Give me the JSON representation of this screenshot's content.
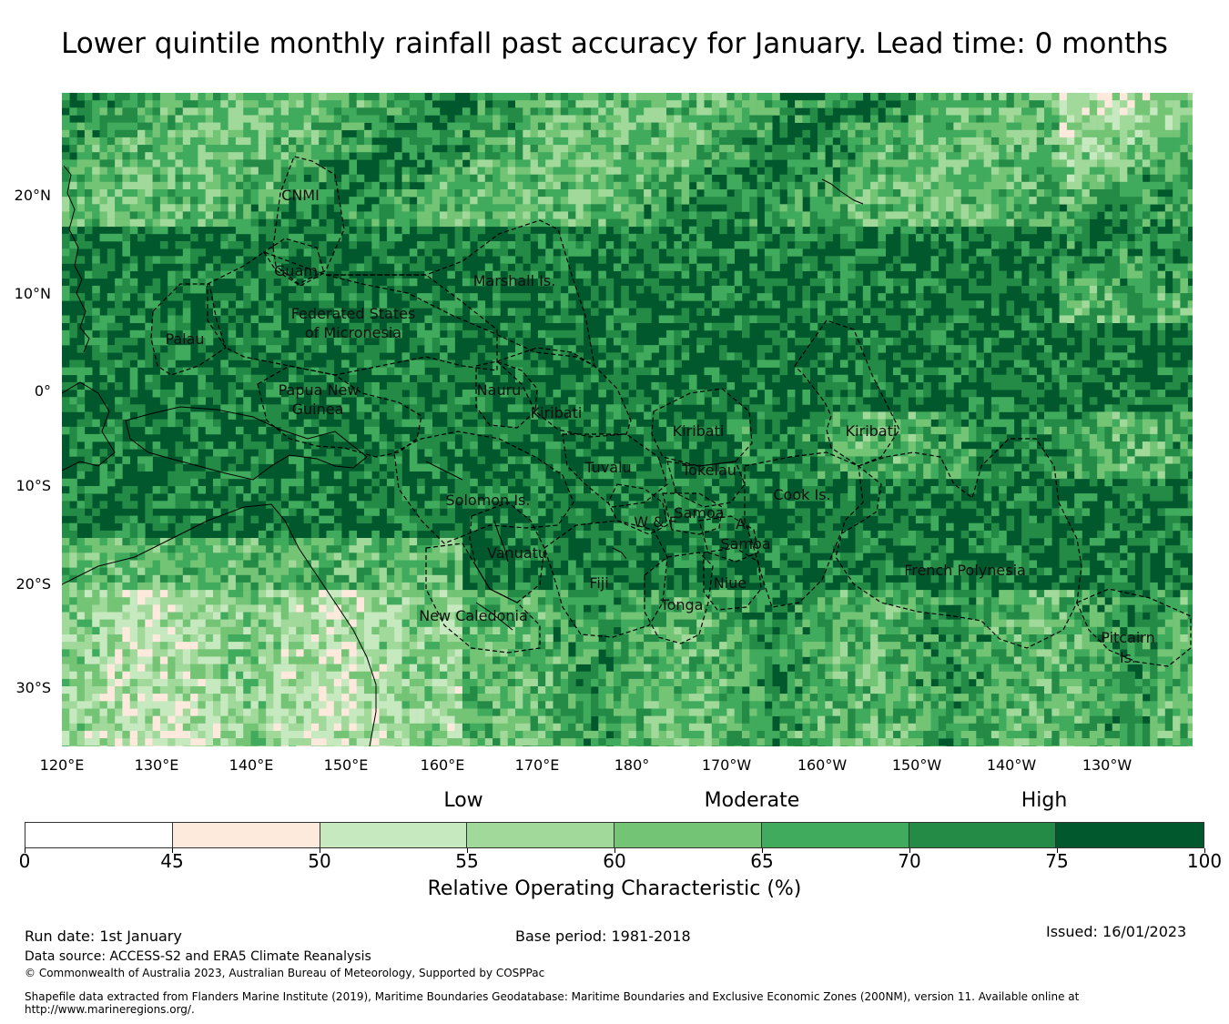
{
  "title": "Lower quintile monthly rainfall past accuracy for January. Lead time: 0 months",
  "map": {
    "lat_labels": [
      "20°N",
      "10°N",
      "0°",
      "10°S",
      "20°S",
      "30°S"
    ],
    "lon_labels": [
      "120°E",
      "130°E",
      "140°E",
      "150°E",
      "160°E",
      "170°E",
      "180°",
      "170°W",
      "160°W",
      "150°W",
      "140°W",
      "130°W"
    ],
    "regions": [
      "CNMI",
      "Guam",
      "Marshall Is.",
      "Federated States",
      "of Micronesia",
      "Palau",
      "Papua New",
      "Guinea",
      "Nauru",
      "Kiribati",
      "Kiribati",
      "Kiribati",
      "Tuvalu",
      "Tokelau",
      "Cook Is.",
      "Solomon Is.",
      "W & F",
      "Samoa",
      "A.",
      "Samoa",
      "Vanuatu",
      "Fiji",
      "Niue",
      "Tonga",
      "French Polynesia",
      "New Caledonia",
      "Pitcairn",
      "Is."
    ]
  },
  "legend": {
    "categories": [
      "Low",
      "Moderate",
      "High"
    ],
    "ticks": [
      "0",
      "45",
      "50",
      "55",
      "60",
      "65",
      "70",
      "75",
      "100"
    ],
    "colors": [
      "#ffffff",
      "#fee9dd",
      "#c7e9c0",
      "#a1d99b",
      "#74c476",
      "#41ab5d",
      "#238b45",
      "#00582c"
    ],
    "label": "Relative Operating Characteristic (%)"
  },
  "footer": {
    "run_date": "Run date: 1st January",
    "base_period": "Base period: 1981-2018",
    "issued": "Issued: 16/01/2023",
    "data_source": "Data source: ACCESS-S2 and ERA5 Climate Reanalysis",
    "copyright": "© Commonwealth of Australia 2023, Australian Bureau of Meteorology, Supported by COSPPac",
    "shapefile_line1": "Shapefile data extracted from Flanders Marine Institute (2019), Maritime Boundaries Geodatabase: Maritime Boundaries and Exclusive Economic Zones (200NM), version 11. Available online at",
    "shapefile_line2": "http://www.marineregions.org/."
  }
}
